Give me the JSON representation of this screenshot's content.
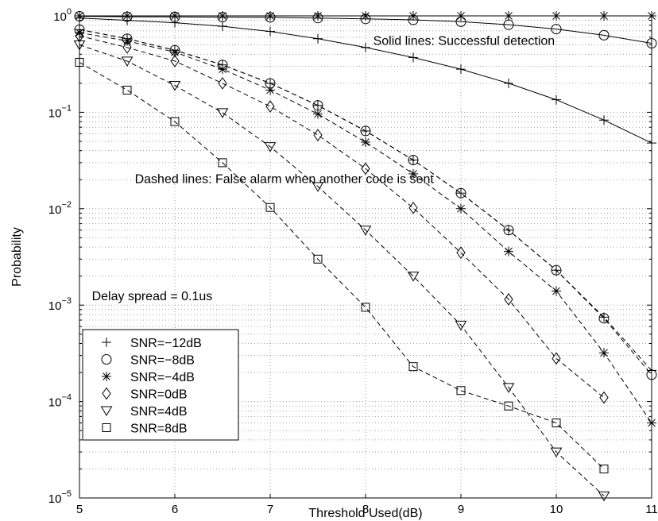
{
  "chart_data": {
    "type": "line",
    "title": "",
    "xlabel": "Threshold Used(dB)",
    "ylabel": "Probability",
    "xlim": [
      5,
      11
    ],
    "ylim": [
      1e-05,
      1
    ],
    "yscale": "log",
    "grid": true,
    "x_ticks": [
      {
        "value": 5,
        "label": "5"
      },
      {
        "value": 6,
        "label": "6"
      },
      {
        "value": 7,
        "label": "7"
      },
      {
        "value": 8,
        "label": "8"
      },
      {
        "value": 9,
        "label": "9"
      },
      {
        "value": 10,
        "label": "10"
      },
      {
        "value": 11,
        "label": "11"
      }
    ],
    "y_ticks": [
      {
        "value": 1,
        "label": "10",
        "exp": "0"
      },
      {
        "value": 0.1,
        "label": "10",
        "exp": "−1"
      },
      {
        "value": 0.01,
        "label": "10",
        "exp": "−2"
      },
      {
        "value": 0.001,
        "label": "10",
        "exp": "−3"
      },
      {
        "value": 0.0001,
        "label": "10",
        "exp": "−4"
      },
      {
        "value": 1e-05,
        "label": "10",
        "exp": "−5"
      }
    ],
    "annotations": [
      {
        "text": "Solid lines:  Successful detection",
        "x": 8.08,
        "y": 0.5
      },
      {
        "text": "Dashed lines: False alarm when another code is sent",
        "x": 5.58,
        "y": 0.0185
      },
      {
        "text": "Delay spread = 0.1us",
        "x": 5.13,
        "y": 0.00113
      }
    ],
    "legend": {
      "placement": "lower-left",
      "entries": [
        {
          "label": "SNR=−12dB",
          "marker": "plus"
        },
        {
          "label": "SNR=−8dB",
          "marker": "circle"
        },
        {
          "label": "SNR=−4dB",
          "marker": "asterisk"
        },
        {
          "label": "SNR=0dB",
          "marker": "diamond"
        },
        {
          "label": "SNR=4dB",
          "marker": "triangle-down"
        },
        {
          "label": "SNR=8dB",
          "marker": "square"
        }
      ]
    },
    "series": [
      {
        "marker": "plus",
        "style": "solid",
        "points": [
          [
            5,
            0.95
          ],
          [
            5.5,
            0.9
          ],
          [
            6,
            0.85
          ],
          [
            6.5,
            0.78
          ],
          [
            7,
            0.69
          ],
          [
            7.5,
            0.58
          ],
          [
            8,
            0.47
          ],
          [
            8.5,
            0.37
          ],
          [
            9,
            0.28
          ],
          [
            9.5,
            0.2
          ],
          [
            10,
            0.135
          ],
          [
            10.5,
            0.083
          ],
          [
            11,
            0.048
          ]
        ]
      },
      {
        "marker": "circle",
        "style": "solid",
        "points": [
          [
            5,
            0.99
          ],
          [
            5.5,
            0.98
          ],
          [
            6,
            0.975
          ],
          [
            6.5,
            0.97
          ],
          [
            7,
            0.965
          ],
          [
            7.5,
            0.95
          ],
          [
            8,
            0.93
          ],
          [
            8.5,
            0.91
          ],
          [
            9,
            0.87
          ],
          [
            9.5,
            0.81
          ],
          [
            10,
            0.73
          ],
          [
            10.5,
            0.63
          ],
          [
            11,
            0.52
          ]
        ]
      },
      {
        "marker": "asterisk",
        "style": "solid",
        "points": [
          [
            5,
            1.0
          ],
          [
            5.5,
            1.0
          ],
          [
            6,
            1.0
          ],
          [
            6.5,
            1.0
          ],
          [
            7,
            1.0
          ],
          [
            7.5,
            1.0
          ],
          [
            8,
            1.0
          ],
          [
            8.5,
            1.0
          ],
          [
            9,
            1.0
          ],
          [
            9.5,
            1.0
          ],
          [
            10,
            1.0
          ],
          [
            10.5,
            1.0
          ],
          [
            11,
            1.0
          ]
        ]
      },
      {
        "marker": "plus",
        "style": "dashed",
        "points": [
          [
            5,
            0.72
          ],
          [
            5.5,
            0.58
          ],
          [
            6,
            0.44
          ],
          [
            6.5,
            0.31
          ],
          [
            7,
            0.2
          ],
          [
            7.5,
            0.118
          ],
          [
            8,
            0.064
          ],
          [
            8.5,
            0.032
          ],
          [
            9,
            0.0145
          ],
          [
            9.5,
            0.006
          ],
          [
            10,
            0.0023
          ],
          [
            10.5,
            0.00075
          ],
          [
            11,
            0.00021
          ]
        ]
      },
      {
        "marker": "circle",
        "style": "dashed",
        "points": [
          [
            5,
            0.72
          ],
          [
            5.5,
            0.58
          ],
          [
            6,
            0.44
          ],
          [
            6.5,
            0.31
          ],
          [
            7,
            0.2
          ],
          [
            7.5,
            0.118
          ],
          [
            8,
            0.064
          ],
          [
            8.5,
            0.032
          ],
          [
            9,
            0.0145
          ],
          [
            9.5,
            0.006
          ],
          [
            10,
            0.0023
          ],
          [
            10.5,
            0.00073
          ],
          [
            11,
            0.00019
          ]
        ]
      },
      {
        "marker": "asterisk",
        "style": "dashed",
        "points": [
          [
            5,
            0.67
          ],
          [
            5.5,
            0.55
          ],
          [
            6,
            0.42
          ],
          [
            6.5,
            0.28
          ],
          [
            7,
            0.17
          ],
          [
            7.5,
            0.096
          ],
          [
            8,
            0.049
          ],
          [
            8.5,
            0.023
          ],
          [
            9,
            0.01
          ],
          [
            9.5,
            0.0036
          ],
          [
            10,
            0.0014
          ],
          [
            10.5,
            0.00032
          ],
          [
            11,
            6e-05
          ]
        ]
      },
      {
        "marker": "diamond",
        "style": "dashed",
        "points": [
          [
            5,
            0.62
          ],
          [
            5.5,
            0.47
          ],
          [
            6,
            0.34
          ],
          [
            6.5,
            0.2
          ],
          [
            7,
            0.115
          ],
          [
            7.5,
            0.058
          ],
          [
            8,
            0.026
          ],
          [
            8.5,
            0.0102
          ],
          [
            9,
            0.0035
          ],
          [
            9.5,
            0.00115
          ],
          [
            10,
            0.00028
          ],
          [
            10.5,
            0.00011
          ]
        ]
      },
      {
        "marker": "triangle-down",
        "style": "dashed",
        "points": [
          [
            5,
            0.5
          ],
          [
            5.5,
            0.34
          ],
          [
            6,
            0.19
          ],
          [
            6.5,
            0.099
          ],
          [
            7,
            0.044
          ],
          [
            7.5,
            0.017
          ],
          [
            8,
            0.006
          ],
          [
            8.5,
            0.002
          ],
          [
            9,
            0.00062
          ],
          [
            9.5,
            0.00014
          ],
          [
            10,
            3e-05
          ],
          [
            10.5,
            1.05e-05
          ]
        ]
      },
      {
        "marker": "square",
        "style": "dashed",
        "points": [
          [
            5,
            0.33
          ],
          [
            5.5,
            0.17
          ],
          [
            6,
            0.08
          ],
          [
            6.5,
            0.03
          ],
          [
            7,
            0.0103
          ],
          [
            7.5,
            0.003
          ],
          [
            8,
            0.00095
          ],
          [
            8.5,
            0.00023
          ],
          [
            9,
            0.00013
          ],
          [
            9.5,
            9e-05
          ],
          [
            10,
            6e-05
          ],
          [
            10.5,
            2e-05
          ]
        ]
      }
    ]
  }
}
